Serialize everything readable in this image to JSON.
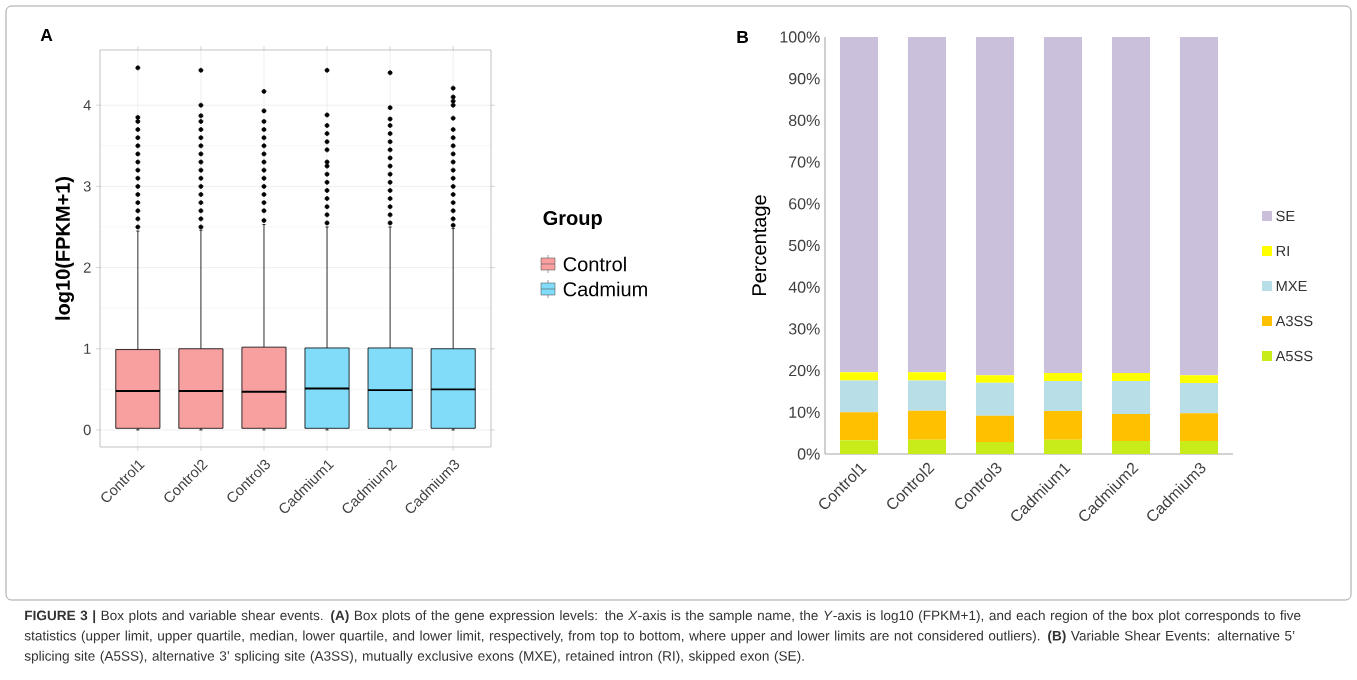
{
  "chart_data": [
    {
      "type": "box",
      "title": "A",
      "ylabel": "log10(FPKM+1)",
      "legend_title": "Group",
      "legend": "right",
      "grid": true,
      "categories": [
        "Control1",
        "Control2",
        "Control3",
        "Cadmium1",
        "Cadmium2",
        "Cadmium3"
      ],
      "ylim": [
        -0.21,
        4.68
      ],
      "yticks": [
        0,
        1,
        2,
        3,
        4
      ],
      "series": [
        {
          "name": "Control",
          "color": "#f8a0a0",
          "boxes": [
            {
              "low": 0,
              "q1": 0.02,
              "median": 0.48,
              "q3": 0.99,
              "high": 2.45,
              "outliers": [
                2.5,
                2.6,
                2.7,
                2.8,
                2.9,
                3.0,
                3.1,
                3.2,
                3.3,
                3.4,
                3.5,
                3.6,
                3.7,
                3.8,
                3.85,
                4.46
              ]
            },
            {
              "low": 0,
              "q1": 0.02,
              "median": 0.48,
              "q3": 1.0,
              "high": 2.46,
              "outliers": [
                2.5,
                2.6,
                2.7,
                2.8,
                2.9,
                3.0,
                3.1,
                3.2,
                3.3,
                3.4,
                3.5,
                3.6,
                3.7,
                3.8,
                3.87,
                4.0,
                4.43
              ]
            },
            {
              "low": 0,
              "q1": 0.02,
              "median": 0.47,
              "q3": 1.02,
              "high": 2.53,
              "outliers": [
                2.58,
                2.7,
                2.8,
                2.9,
                3.0,
                3.1,
                3.2,
                3.3,
                3.4,
                3.5,
                3.6,
                3.7,
                3.8,
                3.93,
                4.17
              ]
            },
            null,
            null,
            null
          ]
        },
        {
          "name": "Cadmium",
          "color": "#80dcf8",
          "boxes": [
            null,
            null,
            null,
            {
              "low": 0,
              "q1": 0.02,
              "median": 0.51,
              "q3": 1.01,
              "high": 2.5,
              "outliers": [
                2.55,
                2.65,
                2.75,
                2.85,
                2.95,
                3.05,
                3.15,
                3.25,
                3.3,
                3.45,
                3.55,
                3.65,
                3.75,
                3.88,
                4.43
              ]
            },
            {
              "low": 0,
              "q1": 0.02,
              "median": 0.49,
              "q3": 1.01,
              "high": 2.5,
              "outliers": [
                2.55,
                2.65,
                2.75,
                2.85,
                2.95,
                3.05,
                3.15,
                3.25,
                3.35,
                3.45,
                3.55,
                3.65,
                3.75,
                3.83,
                3.97,
                4.4
              ]
            },
            {
              "low": 0,
              "q1": 0.02,
              "median": 0.5,
              "q3": 1.0,
              "high": 2.48,
              "outliers": [
                2.52,
                2.6,
                2.7,
                2.8,
                2.9,
                3.0,
                3.1,
                3.2,
                3.3,
                3.4,
                3.5,
                3.6,
                3.7,
                3.84,
                4.0,
                4.05,
                4.1,
                4.21
              ]
            }
          ]
        }
      ],
      "annotations": [
        "**FIGURE 3 |** Box plots and variable shear events. **(A)** Box plots of the gene expression levels: the *X*-axis is the sample name, the *Y*-axis is log10 (FPKM+1), and each region of the box plot corresponds to five statistics (upper limit, upper quartile, median, lower quartile, and lower limit, respectively, from top to bottom, where upper and lower limits are not considered outliers). **(B)** Variable Shear Events: alternative 5’ splicing site (A5SS), alternative 3’ splicing site (A3SS), mutually exclusive exons (MXE), retained intron (RI), skipped exon (SE)."
      ]
    },
    {
      "type": "bar",
      "stacked": true,
      "title": "B",
      "ylabel": "Percentage",
      "legend": "right",
      "categories": [
        "Control1",
        "Control2",
        "Control3",
        "Cadmium1",
        "Cadmium2",
        "Cadmium3"
      ],
      "ylim": [
        0,
        100
      ],
      "yticks": [
        {
          "value": 0,
          "label": "0%"
        },
        {
          "value": 10,
          "label": "10%"
        },
        {
          "value": 20,
          "label": "20%"
        },
        {
          "value": 30,
          "label": "30%"
        },
        {
          "value": 40,
          "label": "40%"
        },
        {
          "value": 50,
          "label": "50%"
        },
        {
          "value": 60,
          "label": "60%"
        },
        {
          "value": 70,
          "label": "70%"
        },
        {
          "value": 80,
          "label": "80%"
        },
        {
          "value": 90,
          "label": "90%"
        },
        {
          "value": 100,
          "label": "100%"
        }
      ],
      "series": [
        {
          "name": "A5SS",
          "color": "#c8ec1a",
          "values": [
            3.3,
            3.4,
            2.9,
            3.4,
            3.1,
            3.1
          ]
        },
        {
          "name": "A3SS",
          "color": "#ffc000",
          "values": [
            6.7,
            7.0,
            6.3,
            6.9,
            6.5,
            6.7
          ]
        },
        {
          "name": "MXE",
          "color": "#b8dfe8",
          "values": [
            7.6,
            7.2,
            7.9,
            7.2,
            7.9,
            7.2
          ]
        },
        {
          "name": "RI",
          "color": "#ffff00",
          "values": [
            2.0,
            2.0,
            1.8,
            1.9,
            1.9,
            1.9
          ]
        },
        {
          "name": "SE",
          "color": "#cbc0dc",
          "values": [
            80.4,
            80.4,
            81.1,
            80.6,
            80.6,
            81.1
          ]
        }
      ]
    }
  ]
}
